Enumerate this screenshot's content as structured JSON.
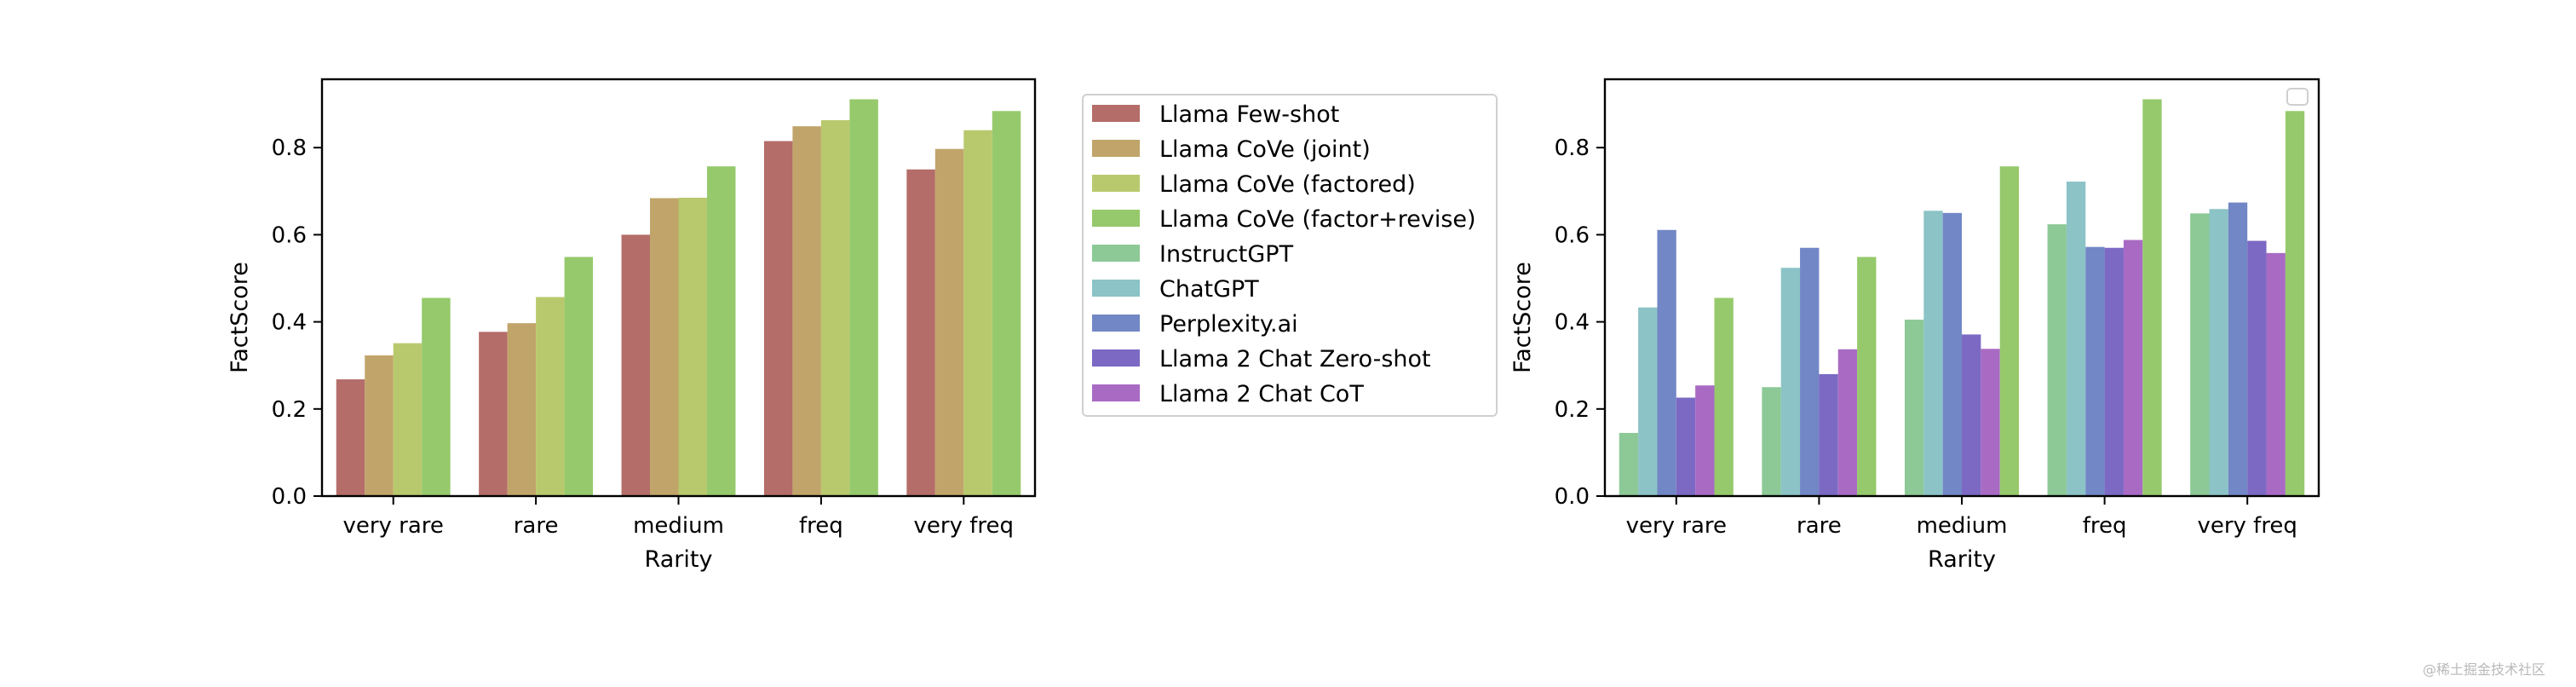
{
  "chart_data": [
    {
      "type": "bar",
      "title": "",
      "xlabel": "Rarity",
      "ylabel": "FactScore",
      "ylim": [
        0,
        0.96
      ],
      "yticks": [
        "0.0",
        "0.2",
        "0.4",
        "0.6",
        "0.8"
      ],
      "ytick_values": [
        0.0,
        0.2,
        0.4,
        0.6,
        0.8
      ],
      "categories": [
        "very rare",
        "rare",
        "medium",
        "freq",
        "very freq"
      ],
      "legend_placement": "outside-right",
      "series": [
        {
          "name": "Llama Few-shot",
          "color": "#b46d69",
          "values": [
            0.268,
            0.377,
            0.6,
            0.815,
            0.75
          ]
        },
        {
          "name": "Llama CoVe (joint)",
          "color": "#c1a46a",
          "values": [
            0.323,
            0.397,
            0.684,
            0.849,
            0.797
          ]
        },
        {
          "name": "Llama CoVe (factored)",
          "color": "#b8c96d",
          "values": [
            0.351,
            0.457,
            0.685,
            0.863,
            0.84
          ]
        },
        {
          "name": "Llama CoVe (factor+revise)",
          "color": "#96c96c",
          "values": [
            0.455,
            0.549,
            0.757,
            0.911,
            0.884
          ]
        }
      ]
    },
    {
      "type": "bar",
      "title": "",
      "xlabel": "Rarity",
      "ylabel": "FactScore",
      "ylim": [
        0,
        0.96
      ],
      "yticks": [
        "0.0",
        "0.2",
        "0.4",
        "0.6",
        "0.8"
      ],
      "ytick_values": [
        0.0,
        0.2,
        0.4,
        0.6,
        0.8
      ],
      "categories": [
        "very rare",
        "rare",
        "medium",
        "freq",
        "very freq"
      ],
      "legend_placement": "top-right (empty)",
      "series": [
        {
          "name": "InstructGPT",
          "color": "#8cc996",
          "values": [
            0.145,
            0.25,
            0.405,
            0.624,
            0.649
          ]
        },
        {
          "name": "ChatGPT",
          "color": "#8bc3c6",
          "values": [
            0.433,
            0.524,
            0.655,
            0.722,
            0.659
          ]
        },
        {
          "name": "Perplexity.ai",
          "color": "#7287c5",
          "values": [
            0.611,
            0.57,
            0.65,
            0.572,
            0.674
          ]
        },
        {
          "name": "Llama 2 Chat Zero-shot",
          "color": "#7b69c4",
          "values": [
            0.226,
            0.28,
            0.371,
            0.57,
            0.586
          ]
        },
        {
          "name": "Llama 2 Chat CoT",
          "color": "#a96ac4",
          "values": [
            0.254,
            0.337,
            0.338,
            0.588,
            0.558
          ]
        },
        {
          "name": "Llama CoVe (factor+revise)",
          "color": "#96c96c",
          "values": [
            0.455,
            0.549,
            0.757,
            0.911,
            0.884
          ]
        }
      ]
    }
  ],
  "legend": {
    "entries": [
      {
        "label": "Llama Few-shot",
        "color": "#b46d69"
      },
      {
        "label": "Llama CoVe (joint)",
        "color": "#c1a46a"
      },
      {
        "label": "Llama CoVe (factored)",
        "color": "#b8c96d"
      },
      {
        "label": "Llama CoVe (factor+revise)",
        "color": "#96c96c"
      },
      {
        "label": "InstructGPT",
        "color": "#8cc996"
      },
      {
        "label": "ChatGPT",
        "color": "#8bc3c6"
      },
      {
        "label": "Perplexity.ai",
        "color": "#7287c5"
      },
      {
        "label": "Llama 2 Chat Zero-shot",
        "color": "#7b69c4"
      },
      {
        "label": "Llama 2 Chat CoT",
        "color": "#a96ac4"
      }
    ]
  },
  "watermark": "@稀土掘金技术社区"
}
